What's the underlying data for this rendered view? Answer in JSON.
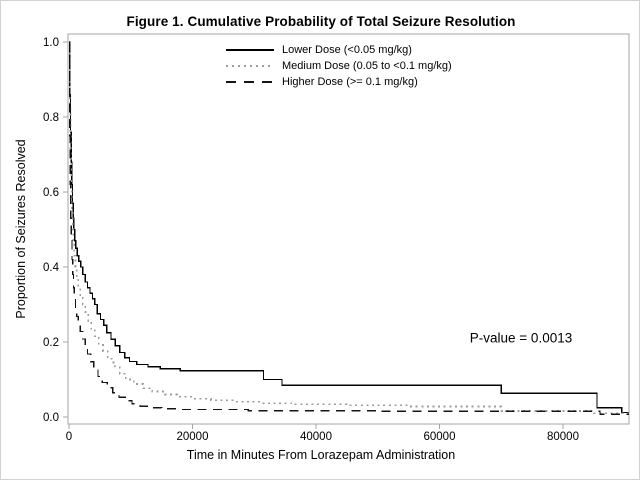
{
  "chart_data": {
    "type": "line",
    "subtype": "step-survival-curves",
    "title": "Figure 1. Cumulative Probability of Total Seizure Resolution",
    "xlabel": "Time in Minutes From Lorazepam Administration",
    "ylabel": "Proportion of Seizures Resolved",
    "annotation": "P-value = 0.0013",
    "xlim": [
      0,
      90700
    ],
    "ylim": [
      0,
      1.0
    ],
    "x_ticks": [
      0,
      20000,
      40000,
      60000,
      80000
    ],
    "x_tick_labels": [
      "0",
      "20000",
      "40000",
      "60000",
      "80000"
    ],
    "y_ticks": [
      0.0,
      0.2,
      0.4,
      0.6,
      0.8,
      1.0
    ],
    "y_tick_labels": [
      "0.0",
      "0.2",
      "0.4",
      "0.6",
      "0.8",
      "1.0"
    ],
    "grid": false,
    "legend_position": "inside-top-center",
    "frame_color": "#a6a6a6",
    "series": [
      {
        "name": "Lower Dose (<0.05 mg/kg)",
        "style": "solid",
        "color": "#000000",
        "points": [
          [
            0,
            1.0
          ],
          [
            150,
            0.86
          ],
          [
            250,
            0.76
          ],
          [
            350,
            0.68
          ],
          [
            450,
            0.62
          ],
          [
            560,
            0.57
          ],
          [
            680,
            0.53
          ],
          [
            800,
            0.5
          ],
          [
            950,
            0.47
          ],
          [
            1100,
            0.45
          ],
          [
            1350,
            0.43
          ],
          [
            1600,
            0.415
          ],
          [
            1900,
            0.4
          ],
          [
            2200,
            0.38
          ],
          [
            2600,
            0.36
          ],
          [
            3000,
            0.345
          ],
          [
            3400,
            0.33
          ],
          [
            3800,
            0.315
          ],
          [
            4200,
            0.3
          ],
          [
            4600,
            0.275
          ],
          [
            5100,
            0.26
          ],
          [
            5600,
            0.245
          ],
          [
            6100,
            0.225
          ],
          [
            6800,
            0.207
          ],
          [
            7500,
            0.19
          ],
          [
            8200,
            0.172
          ],
          [
            9000,
            0.158
          ],
          [
            9800,
            0.148
          ],
          [
            11000,
            0.14
          ],
          [
            12800,
            0.134
          ],
          [
            14800,
            0.129
          ],
          [
            18000,
            0.123
          ],
          [
            31500,
            0.1
          ],
          [
            34500,
            0.085
          ],
          [
            70000,
            0.063
          ],
          [
            85500,
            0.025
          ],
          [
            89500,
            0.012
          ]
        ]
      },
      {
        "name": "Medium Dose (0.05 to <0.1 mg/kg)",
        "style": "dotted",
        "color": "#9c9c9c",
        "points": [
          [
            0,
            1.0
          ],
          [
            150,
            0.82
          ],
          [
            250,
            0.7
          ],
          [
            350,
            0.61
          ],
          [
            460,
            0.55
          ],
          [
            580,
            0.5
          ],
          [
            720,
            0.46
          ],
          [
            880,
            0.43
          ],
          [
            1050,
            0.4
          ],
          [
            1250,
            0.37
          ],
          [
            1500,
            0.345
          ],
          [
            1800,
            0.32
          ],
          [
            2200,
            0.3
          ],
          [
            2600,
            0.28
          ],
          [
            3100,
            0.255
          ],
          [
            3600,
            0.235
          ],
          [
            4200,
            0.215
          ],
          [
            4800,
            0.195
          ],
          [
            5500,
            0.175
          ],
          [
            6300,
            0.155
          ],
          [
            7200,
            0.135
          ],
          [
            8200,
            0.115
          ],
          [
            9200,
            0.1
          ],
          [
            10500,
            0.088
          ],
          [
            12000,
            0.077
          ],
          [
            13500,
            0.068
          ],
          [
            15500,
            0.06
          ],
          [
            17500,
            0.054
          ],
          [
            20000,
            0.049
          ],
          [
            23000,
            0.045
          ],
          [
            27000,
            0.041
          ],
          [
            31000,
            0.037
          ],
          [
            36000,
            0.034
          ],
          [
            45000,
            0.031
          ],
          [
            55000,
            0.028
          ],
          [
            70000,
            0.016
          ],
          [
            85000,
            0.01
          ]
        ]
      },
      {
        "name": "Higher Dose (>= 0.1 mg/kg)",
        "style": "dashed",
        "color": "#141414",
        "points": [
          [
            0,
            1.0
          ],
          [
            120,
            0.75
          ],
          [
            200,
            0.62
          ],
          [
            290,
            0.53
          ],
          [
            380,
            0.47
          ],
          [
            480,
            0.42
          ],
          [
            600,
            0.38
          ],
          [
            730,
            0.345
          ],
          [
            880,
            0.315
          ],
          [
            1050,
            0.29
          ],
          [
            1250,
            0.268
          ],
          [
            1500,
            0.248
          ],
          [
            1800,
            0.228
          ],
          [
            2200,
            0.208
          ],
          [
            2600,
            0.19
          ],
          [
            3000,
            0.168
          ],
          [
            3500,
            0.147
          ],
          [
            4000,
            0.127
          ],
          [
            4700,
            0.108
          ],
          [
            5400,
            0.092
          ],
          [
            6200,
            0.078
          ],
          [
            7100,
            0.065
          ],
          [
            8100,
            0.053
          ],
          [
            9100,
            0.043
          ],
          [
            10200,
            0.035
          ],
          [
            11500,
            0.029
          ],
          [
            13000,
            0.025
          ],
          [
            15000,
            0.022
          ],
          [
            18000,
            0.02
          ],
          [
            29000,
            0.017
          ],
          [
            50000,
            0.015
          ],
          [
            86000,
            0.007
          ]
        ]
      }
    ]
  }
}
